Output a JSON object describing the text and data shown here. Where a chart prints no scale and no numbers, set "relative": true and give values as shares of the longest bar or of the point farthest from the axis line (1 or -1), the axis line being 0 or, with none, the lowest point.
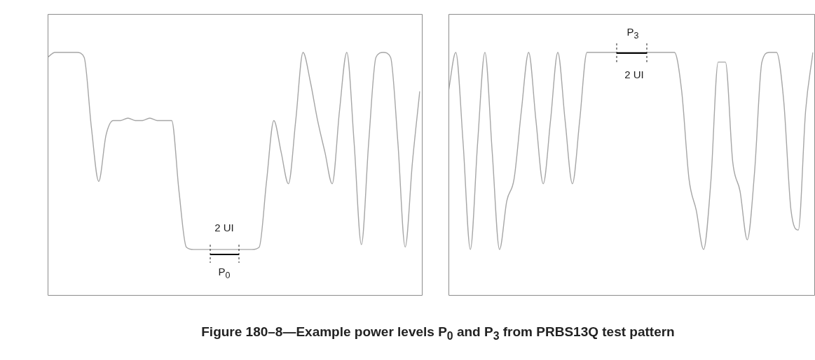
{
  "chart_data": [
    {
      "type": "line",
      "title": "Figure 180–8—Example power levels P$_{0}$ and P$_{3}$ from PRBS13Q test pattern",
      "relative": true,
      "marker": "none",
      "line_style": "solid",
      "annotations": [
        "2 UI",
        "P$_{0}$"
      ],
      "categories": [
        null,
        null,
        null,
        null,
        null,
        null,
        null,
        null,
        null,
        null,
        null,
        null,
        null,
        null,
        null,
        null,
        null,
        null,
        null,
        null,
        null,
        null,
        null,
        null,
        null,
        null,
        null,
        null,
        null,
        null,
        null,
        null,
        null,
        null,
        null,
        null,
        null,
        null,
        null,
        null,
        null,
        null,
        null,
        null,
        null,
        null,
        null,
        null,
        null,
        null,
        null,
        null
      ],
      "series": [
        {
          "color": "#a6a6a6",
          "values": [
            0.98,
            1,
            1,
            1,
            1,
            0.98,
            0.69,
            0.47,
            0.66,
            0.72,
            0.72,
            0.73,
            0.72,
            0.72,
            0.73,
            0.72,
            0.72,
            0.72,
            0.43,
            0.2,
            0.19,
            0.19,
            0.19,
            0.19,
            0.19,
            0.19,
            0.19,
            0.19,
            0.19,
            0.2,
            0.47,
            0.72,
            0.59,
            0.46,
            0.72,
            1,
            0.88,
            0.72,
            0.59,
            0.46,
            0.76,
            1,
            0.63,
            0.21,
            0.63,
            0.98,
            1,
            0.98,
            0.63,
            0.2,
            0.55,
            0.84
          ]
        }
      ]
    },
    {
      "type": "line",
      "relative": true,
      "marker": "none",
      "line_style": "solid",
      "annotations": [
        "P$_{3}$",
        "2 UI"
      ],
      "categories": [
        null,
        null,
        null,
        null,
        null,
        null,
        null,
        null,
        null,
        null,
        null,
        null,
        null,
        null,
        null,
        null,
        null,
        null,
        null,
        null,
        null,
        null,
        null,
        null,
        null,
        null,
        null,
        null,
        null,
        null,
        null,
        null,
        null,
        null,
        null,
        null,
        null,
        null,
        null,
        null,
        null,
        null,
        null,
        null,
        null,
        null,
        null,
        null,
        null,
        null,
        null
      ],
      "series": [
        {
          "color": "#a6a6a6",
          "values": [
            0.84,
            1,
            0.63,
            0.19,
            0.63,
            1,
            0.59,
            0.19,
            0.39,
            0.48,
            0.76,
            1,
            0.72,
            0.46,
            0.72,
            1,
            0.72,
            0.46,
            0.72,
            1,
            1,
            1,
            1,
            1,
            1,
            1,
            1,
            1,
            1,
            1,
            1,
            1,
            0.84,
            0.48,
            0.35,
            0.19,
            0.47,
            0.96,
            0.96,
            0.55,
            0.43,
            0.23,
            0.51,
            0.96,
            1,
            1,
            0.8,
            0.35,
            0.27,
            0.76,
            1
          ]
        }
      ]
    }
  ]
}
